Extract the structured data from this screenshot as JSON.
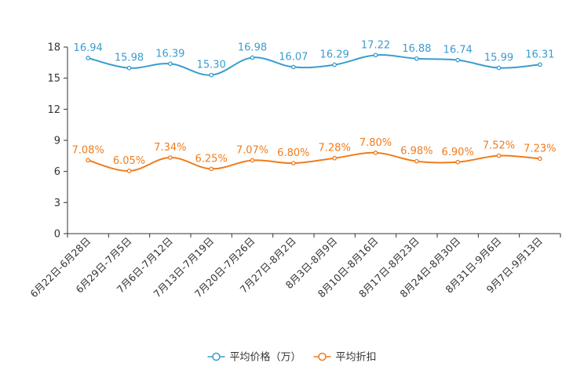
{
  "chart_data": {
    "type": "line",
    "categories": [
      "6月22日-6月28日",
      "6月29日-7月5日",
      "7月6日-7月12日",
      "7月13日-7月19日",
      "7月20日-7月26日",
      "7月27日-8月2日",
      "8月3日-8月9日",
      "8月10日-8月16日",
      "8月17日-8月23日",
      "8月24日-8月30日",
      "8月31日-9月6日",
      "9月7日-9月13日"
    ],
    "series": [
      {
        "name": "平均价格（万）",
        "color": "#3a9dd0",
        "values": [
          16.94,
          15.98,
          16.39,
          15.3,
          16.98,
          16.07,
          16.29,
          17.22,
          16.88,
          16.74,
          15.99,
          16.31
        ],
        "labels": [
          "16.94",
          "15.98",
          "16.39",
          "15.30",
          "16.98",
          "16.07",
          "16.29",
          "17.22",
          "16.88",
          "16.74",
          "15.99",
          "16.31"
        ]
      },
      {
        "name": "平均折扣",
        "color": "#f07c1c",
        "values": [
          7.08,
          6.05,
          7.34,
          6.25,
          7.07,
          6.8,
          7.28,
          7.8,
          6.98,
          6.9,
          7.52,
          7.23
        ],
        "labels": [
          "7.08%",
          "6.05%",
          "7.34%",
          "6.25%",
          "7.07%",
          "6.80%",
          "7.28%",
          "7.80%",
          "6.98%",
          "6.90%",
          "7.52%",
          "7.23%"
        ]
      }
    ],
    "yticks": [
      "0",
      "3",
      "6",
      "9",
      "12",
      "15",
      "18"
    ],
    "ylim": [
      0,
      18
    ],
    "grid": false,
    "legend_position": "bottom-center"
  }
}
